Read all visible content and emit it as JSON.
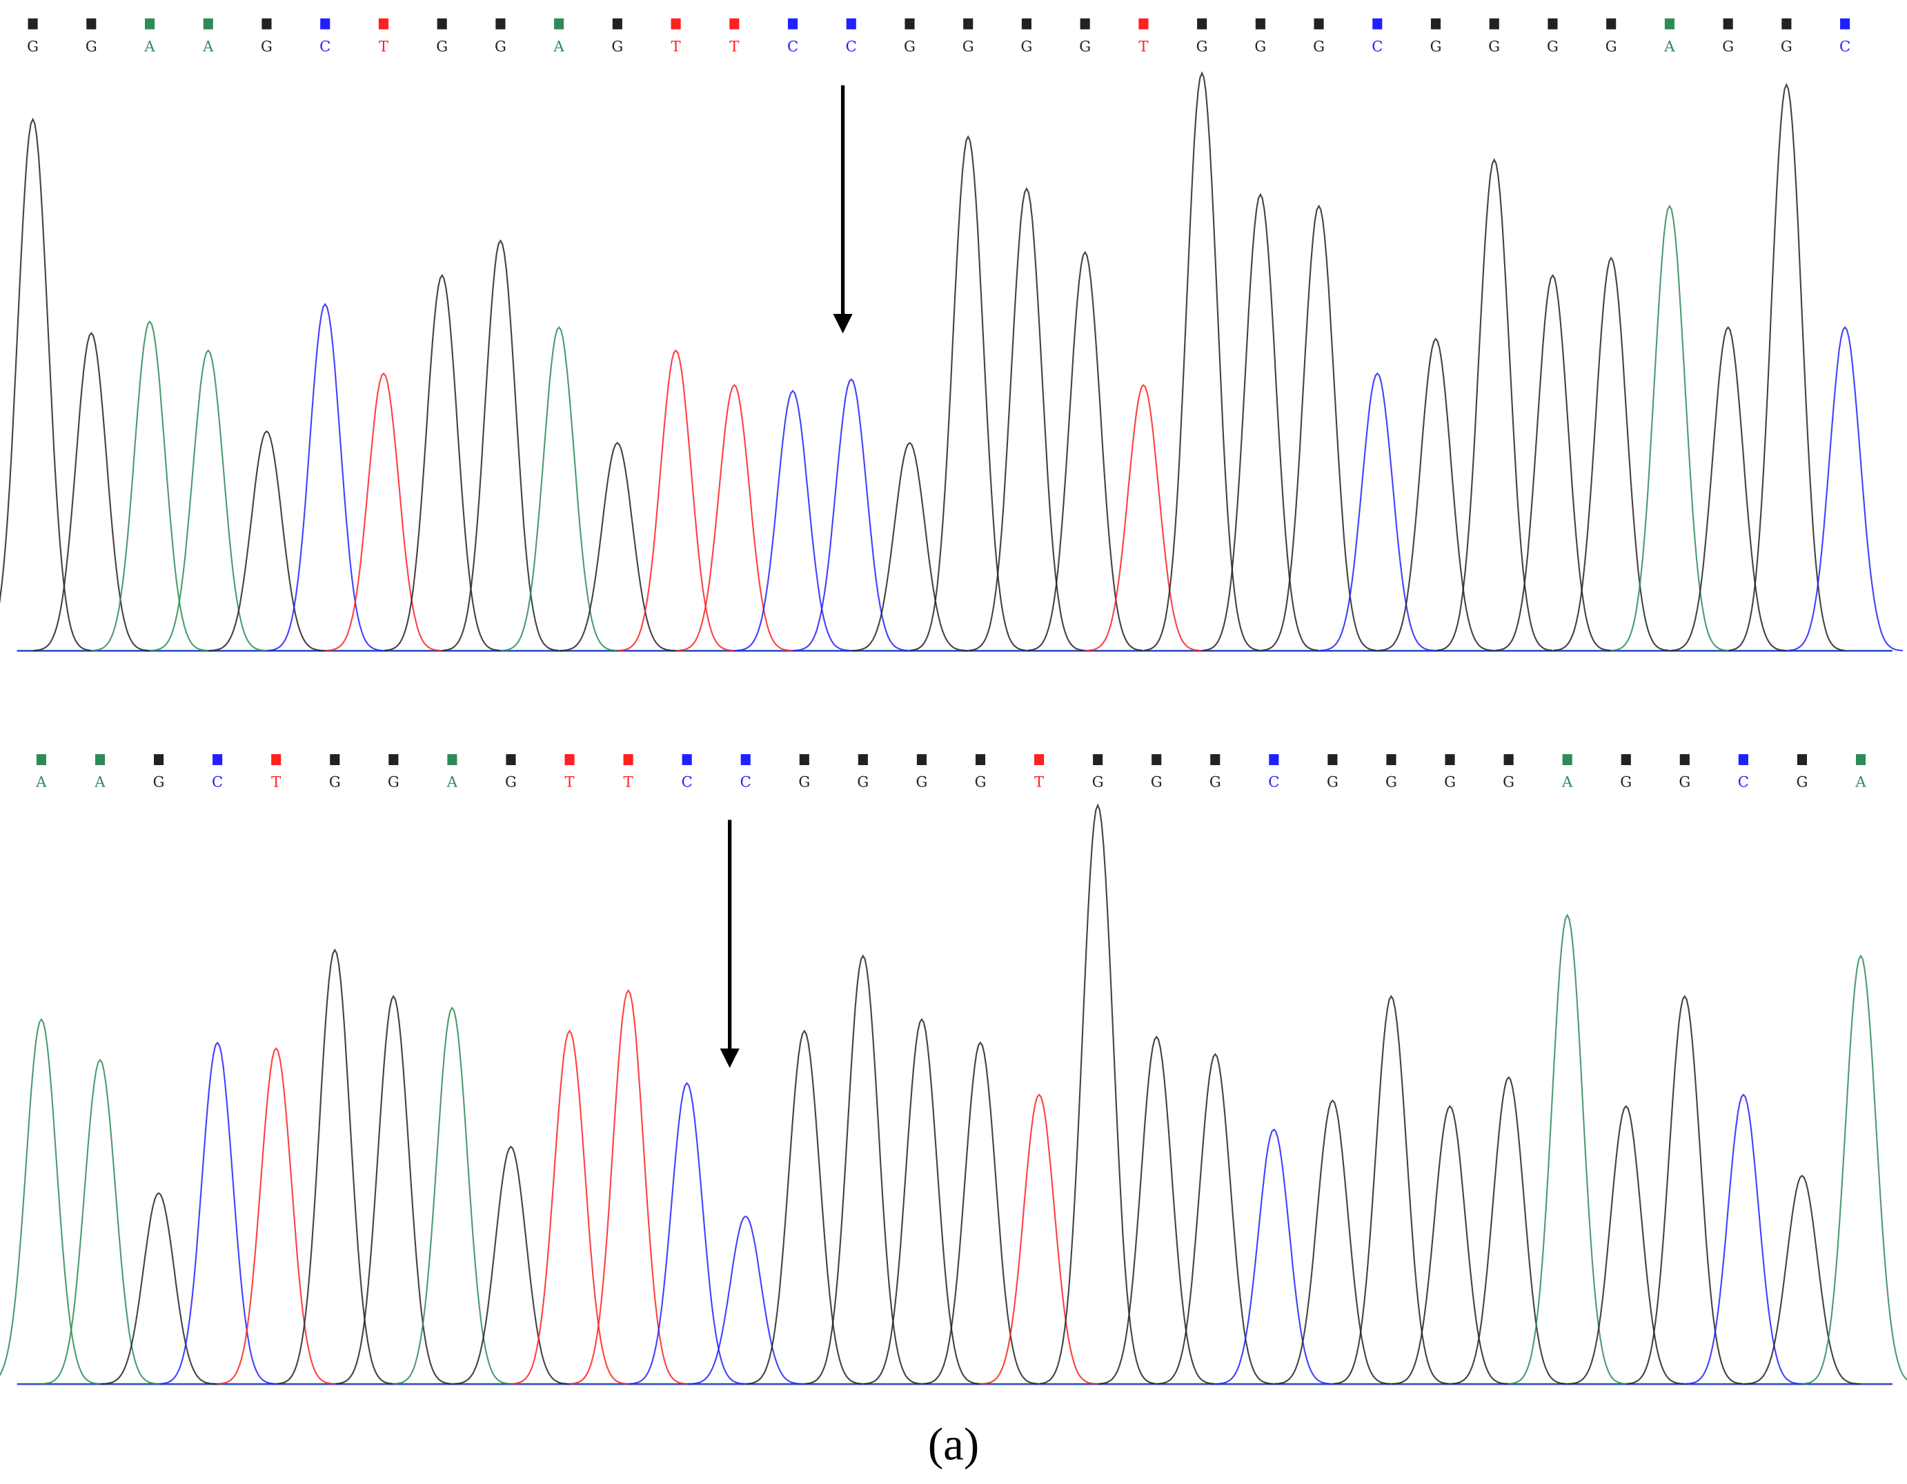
{
  "chart_data": [
    {
      "type": "chromatogram",
      "categories": [
        "G",
        "G",
        "A",
        "A",
        "G",
        "C",
        "T",
        "G",
        "G",
        "A",
        "G",
        "T",
        "T",
        "C",
        "C",
        "G",
        "G",
        "G",
        "G",
        "T",
        "G",
        "G",
        "G",
        "C",
        "G",
        "G",
        "G",
        "G",
        "A",
        "G",
        "G",
        "C"
      ],
      "values": [
        92,
        55,
        57,
        52,
        38,
        60,
        48,
        65,
        71,
        56,
        36,
        52,
        46,
        45,
        47,
        36,
        89,
        80,
        69,
        46,
        100,
        79,
        77,
        48,
        54,
        85,
        65,
        68,
        77,
        56,
        98,
        56
      ],
      "ylim": [
        0,
        100
      ],
      "colors": {
        "A": "#2e8b57",
        "C": "#2020ff",
        "G": "#222222",
        "T": "#ff2020"
      }
    },
    {
      "type": "chromatogram",
      "categories": [
        "A",
        "A",
        "G",
        "C",
        "T",
        "G",
        "G",
        "A",
        "G",
        "T",
        "T",
        "C",
        "C",
        "G",
        "G",
        "G",
        "G",
        "T",
        "G",
        "G",
        "G",
        "C",
        "G",
        "G",
        "G",
        "G",
        "A",
        "G",
        "G",
        "C",
        "G",
        "A"
      ],
      "values": [
        63,
        56,
        33,
        59,
        58,
        75,
        67,
        65,
        41,
        61,
        68,
        52,
        29,
        61,
        74,
        63,
        59,
        50,
        100,
        60,
        57,
        44,
        49,
        67,
        48,
        53,
        81,
        48,
        67,
        50,
        36,
        74
      ],
      "ylim": [
        0,
        100
      ],
      "colors": {
        "A": "#2e8b57",
        "C": "#2020ff",
        "G": "#222222",
        "T": "#ff2020"
      }
    }
  ],
  "caption": "(a)"
}
